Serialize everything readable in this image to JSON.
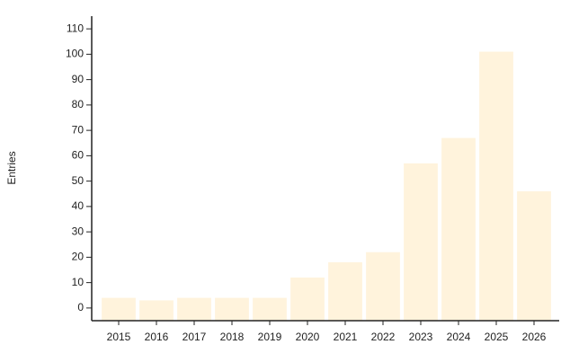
{
  "chart_data": {
    "type": "bar",
    "y_label": "Entries",
    "categories": [
      "2015",
      "2016",
      "2017",
      "2018",
      "2019",
      "2020",
      "2021",
      "2022",
      "2023",
      "2024",
      "2025",
      "2026"
    ],
    "values": [
      4,
      3,
      4,
      4,
      4,
      12,
      18,
      22,
      57,
      67,
      101,
      46
    ],
    "color": "#fff3dc",
    "ylim": [
      -5,
      115
    ],
    "yticks": [
      0,
      10,
      20,
      30,
      40,
      50,
      60,
      70,
      80,
      90,
      100,
      110
    ],
    "grid": false
  }
}
